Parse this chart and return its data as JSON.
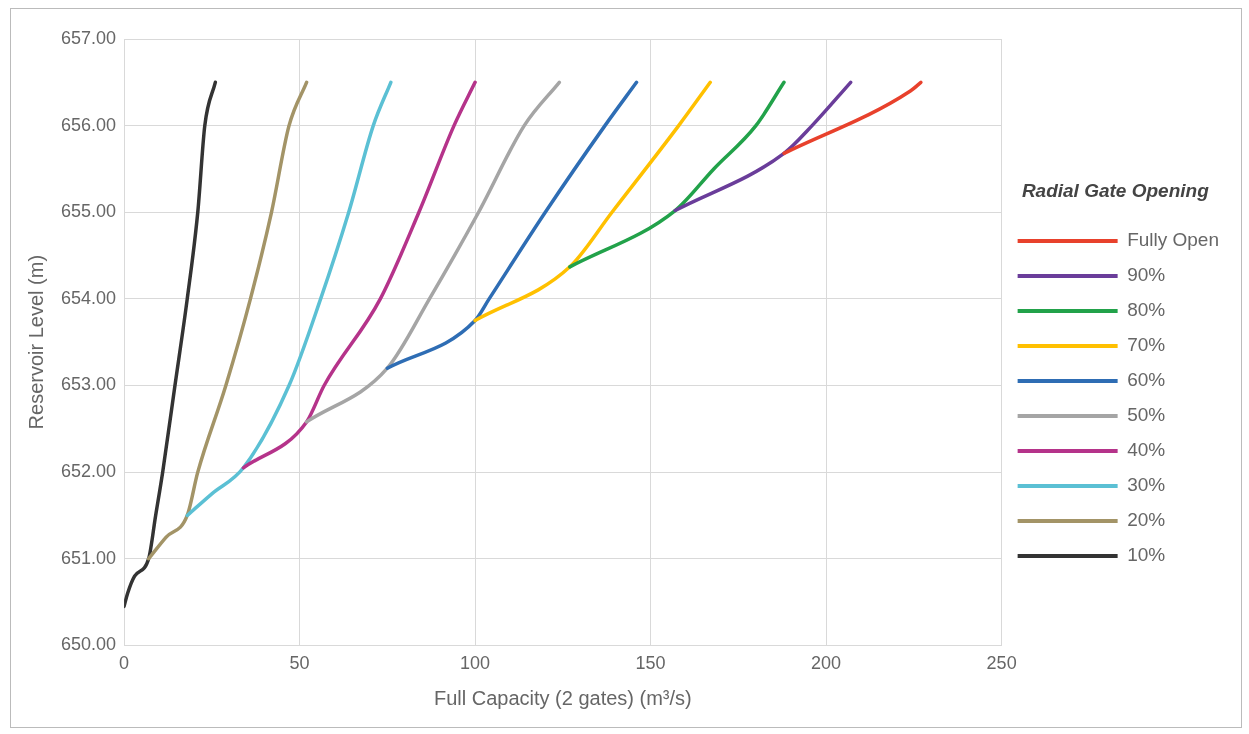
{
  "chart_data": {
    "type": "line",
    "xlabel": "Full Capacity (2 gates) (m³/s)",
    "ylabel": "Reservoir Level (m)",
    "legend_title": "Radial Gate Opening",
    "legend": "right",
    "grid": true,
    "marker": "none",
    "line_style": "solid",
    "xlim": [
      0,
      250
    ],
    "xticks": [
      0,
      50,
      100,
      150,
      200,
      250
    ],
    "ylim": [
      650,
      657
    ],
    "yticks": [
      {
        "value": 650,
        "label": "650.00"
      },
      {
        "value": 651,
        "label": "651.00"
      },
      {
        "value": 652,
        "label": "652.00"
      },
      {
        "value": 653,
        "label": "653.00"
      },
      {
        "value": 654,
        "label": "654.00"
      },
      {
        "value": 655,
        "label": "655.00"
      },
      {
        "value": 656,
        "label": "656.00"
      },
      {
        "value": 657,
        "label": "657.00"
      }
    ],
    "series": [
      {
        "name": "Fully Open",
        "color": "#e8412c",
        "x": [
          188,
          224,
          227
        ],
        "values": [
          655.68,
          656.4,
          656.5
        ]
      },
      {
        "name": "90%",
        "color": "#6a3d9a",
        "x": [
          157,
          188,
          196,
          207
        ],
        "values": [
          655.02,
          655.68,
          656.0,
          656.5
        ]
      },
      {
        "name": "80%",
        "color": "#22a24a",
        "x": [
          127,
          157,
          168,
          180,
          188
        ],
        "values": [
          654.37,
          655.02,
          655.5,
          656.0,
          656.5
        ]
      },
      {
        "name": "70%",
        "color": "#ffc000",
        "x": [
          100,
          127,
          139,
          158,
          167
        ],
        "values": [
          653.75,
          654.37,
          655.0,
          656.0,
          656.5
        ]
      },
      {
        "name": "60%",
        "color": "#2e6db4",
        "x": [
          75,
          100,
          104,
          120,
          137,
          146
        ],
        "values": [
          653.2,
          653.75,
          654.0,
          655.0,
          656.0,
          656.5
        ]
      },
      {
        "name": "50%",
        "color": "#a5a5a5",
        "x": [
          52,
          75,
          87,
          101,
          114,
          124
        ],
        "values": [
          652.58,
          653.2,
          654.0,
          655.0,
          656.0,
          656.5
        ]
      },
      {
        "name": "40%",
        "color": "#b5338a",
        "x": [
          34,
          52,
          57,
          73,
          84,
          94,
          100
        ],
        "values": [
          652.05,
          652.58,
          653.0,
          654.0,
          655.0,
          656.0,
          656.5
        ]
      },
      {
        "name": "30%",
        "color": "#5bc0d4",
        "x": [
          18,
          25,
          34,
          47,
          56,
          64,
          71,
          76
        ],
        "values": [
          651.5,
          651.75,
          652.05,
          653.0,
          654.0,
          655.0,
          656.0,
          656.5
        ]
      },
      {
        "name": "20%",
        "color": "#a39467",
        "x": [
          7,
          12,
          18,
          21,
          29,
          36,
          42,
          47,
          52
        ],
        "values": [
          651.0,
          651.25,
          651.5,
          652.0,
          653.0,
          654.0,
          655.0,
          656.0,
          656.5
        ]
      },
      {
        "name": "10%",
        "color": "#333333",
        "x": [
          0,
          1,
          3,
          7,
          9,
          11,
          14.5,
          18,
          21,
          23,
          26
        ],
        "values": [
          650.45,
          650.6,
          650.8,
          651.0,
          651.5,
          652.0,
          653.0,
          654.0,
          655.0,
          656.0,
          656.5
        ]
      }
    ]
  }
}
